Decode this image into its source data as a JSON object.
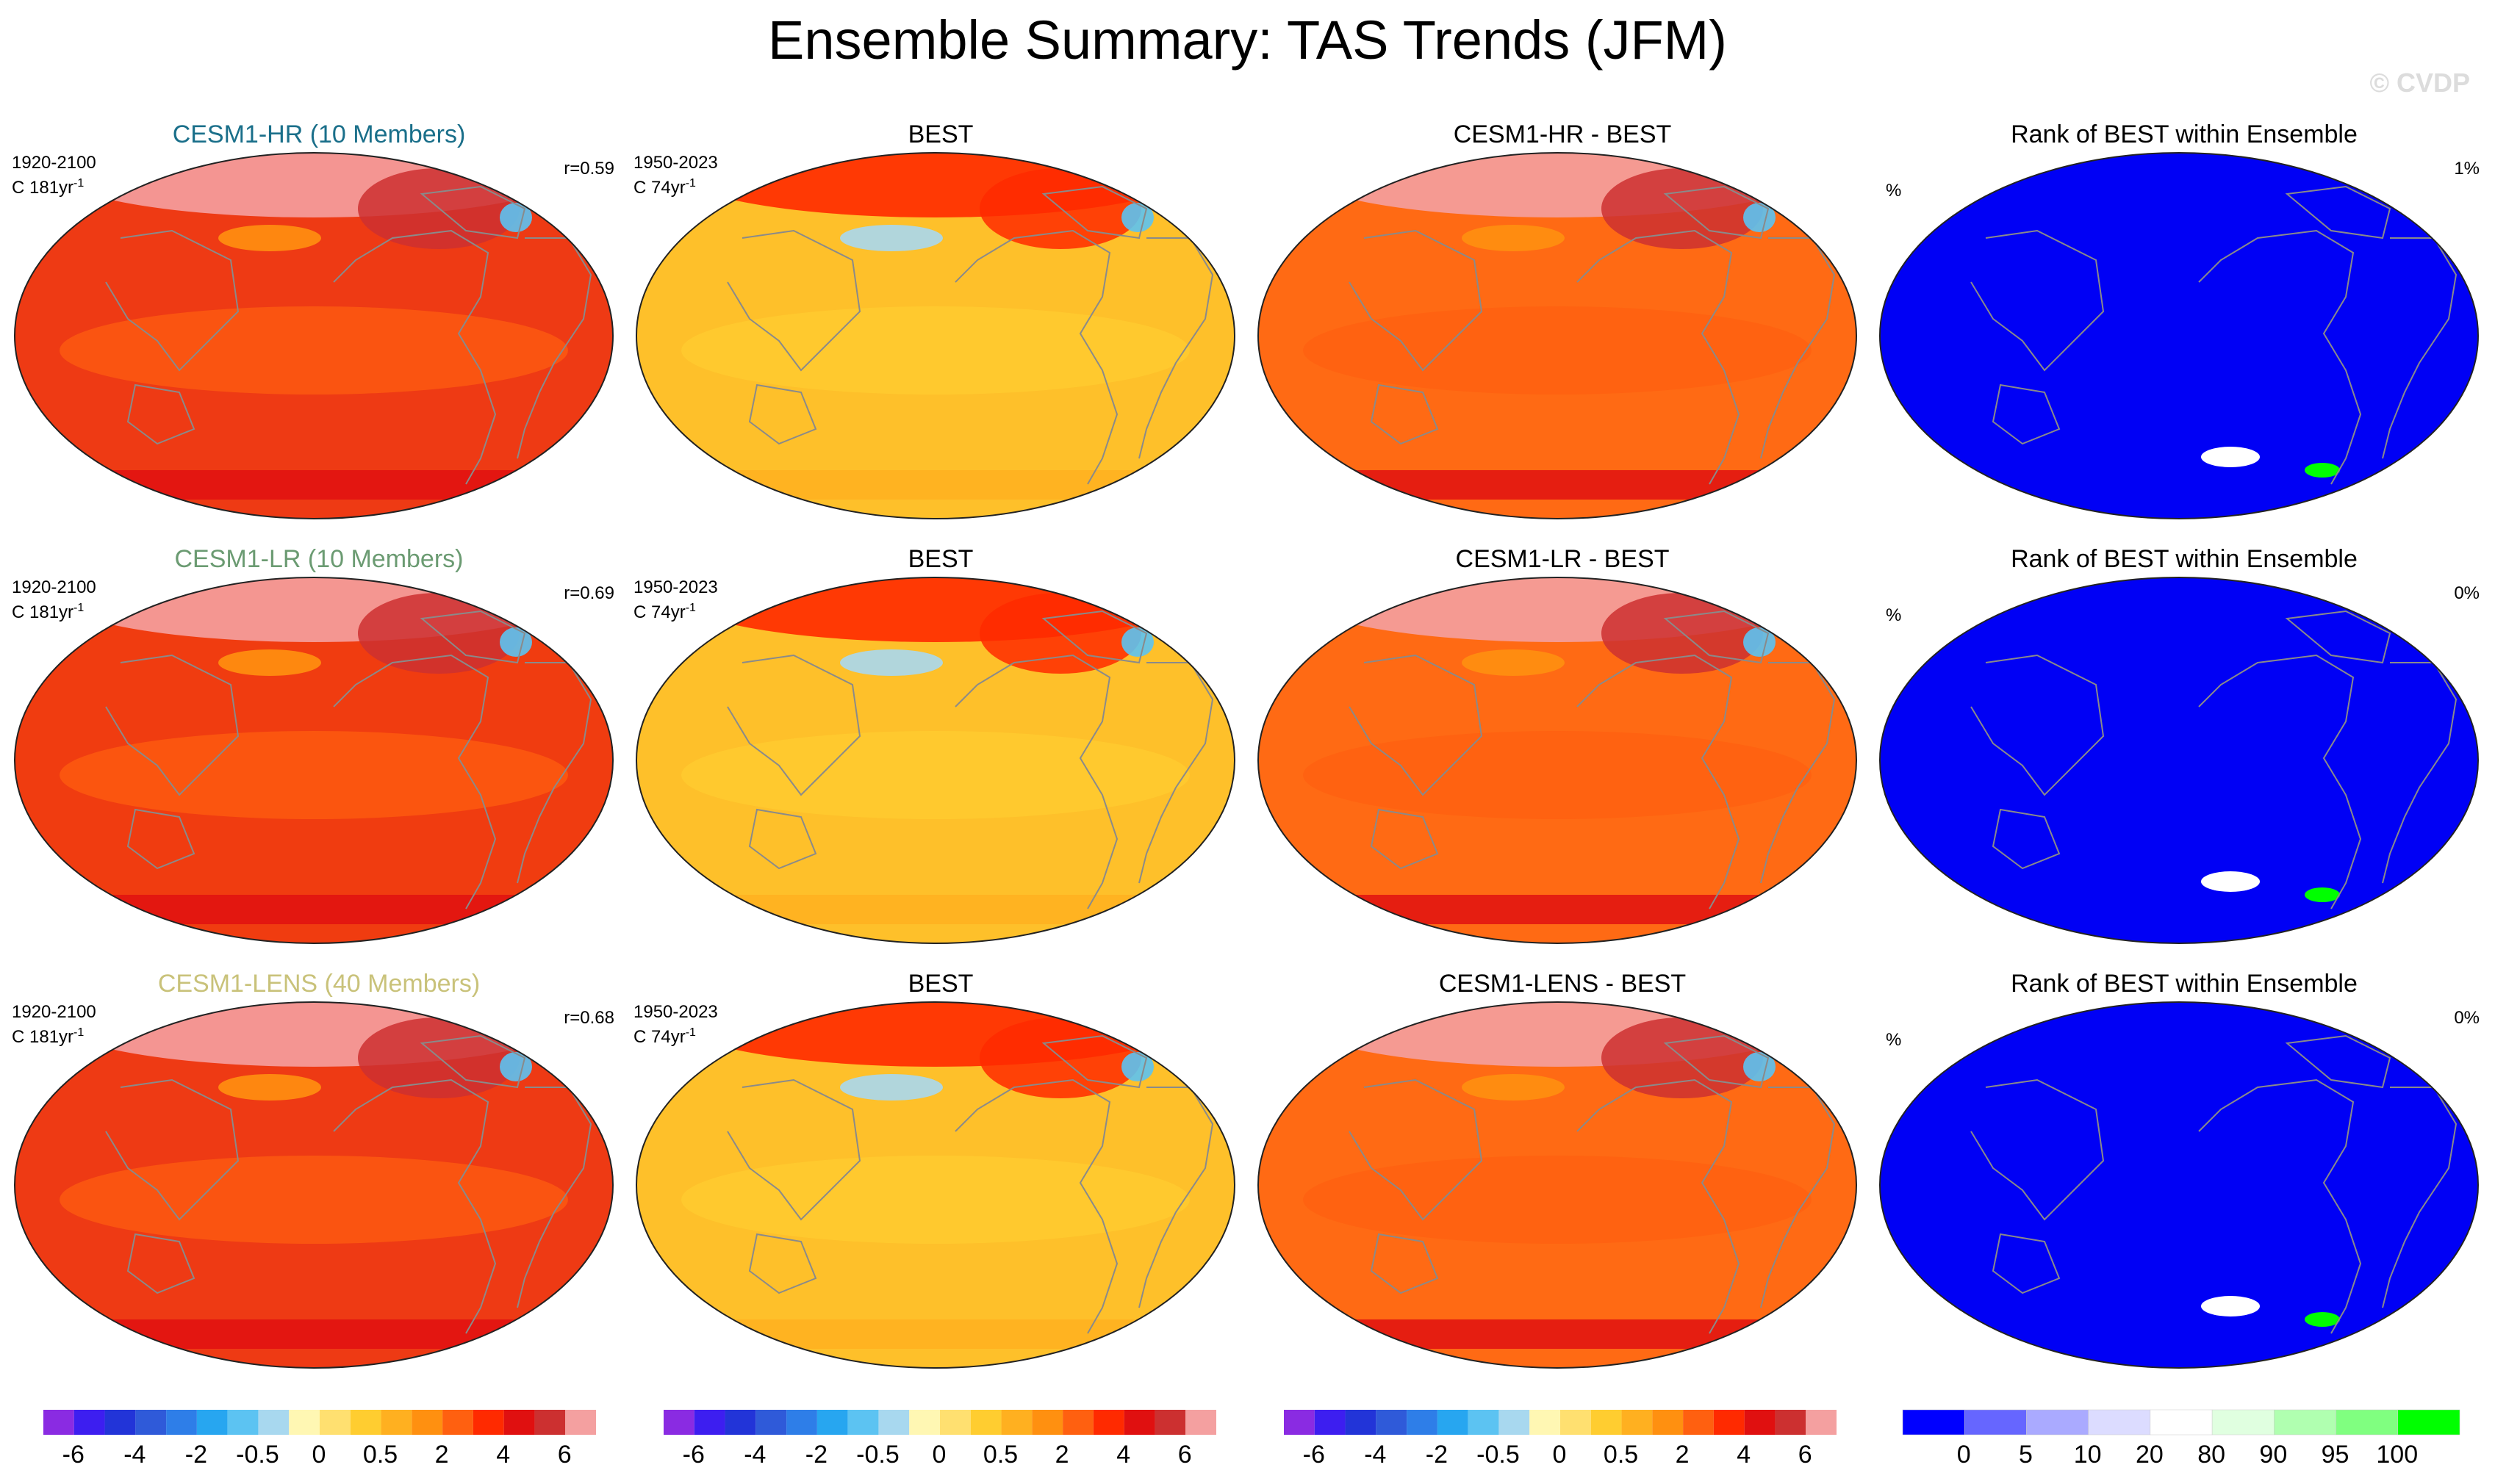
{
  "title": "Ensemble Summary: TAS Trends (JFM)",
  "watermark": "© CVDP",
  "colors": {
    "trend_scale": [
      "#8a2be2",
      "#3d1ef0",
      "#2234d8",
      "#2f5ad9",
      "#2e7ee8",
      "#27a6f0",
      "#5cc3f2",
      "#a8d8ef",
      "#fff7b3",
      "#ffe070",
      "#ffcd30",
      "#ffb020",
      "#ff9010",
      "#ff6010",
      "#ff2a00",
      "#e01010",
      "#cc3030",
      "#f4a0a0"
    ],
    "rank_scale": [
      "#0000ff",
      "#6666ff",
      "#aaaaff",
      "#dcdcff",
      "#ffffff",
      "#e0ffe0",
      "#b0ffb0",
      "#80ff80",
      "#00ff00"
    ],
    "map_models": [
      "#ee3a14",
      "#f03c10",
      "#ee3a14"
    ],
    "map_obs": "#fec02a",
    "map_diff": "#ff6a14",
    "map_rank": "#0000f5",
    "land_outline": "#8a8a8a"
  },
  "rows": [
    {
      "model": {
        "title": "CESM1-HR (10 Members)",
        "title_color": "#1a6f8a",
        "period": "1920-2100",
        "units": "C 181yr",
        "units_sup": "-1",
        "corr": "r=0.59"
      },
      "obs": {
        "title": "BEST",
        "period": "1950-2023",
        "units": "C 74yr",
        "units_sup": "-1"
      },
      "diff": {
        "title": "CESM1-HR - BEST"
      },
      "rank": {
        "title": "Rank of BEST within Ensemble",
        "pct_label": "%",
        "pct_value": "1%"
      }
    },
    {
      "model": {
        "title": "CESM1-LR (10 Members)",
        "title_color": "#6b9b72",
        "period": "1920-2100",
        "units": "C 181yr",
        "units_sup": "-1",
        "corr": "r=0.69"
      },
      "obs": {
        "title": "BEST",
        "period": "1950-2023",
        "units": "C 74yr",
        "units_sup": "-1"
      },
      "diff": {
        "title": "CESM1-LR - BEST"
      },
      "rank": {
        "title": "Rank of BEST within Ensemble",
        "pct_label": "%",
        "pct_value": "0%"
      }
    },
    {
      "model": {
        "title": "CESM1-LENS (40 Members)",
        "title_color": "#c9c27a",
        "period": "1920-2100",
        "units": "C 181yr",
        "units_sup": "-1",
        "corr": "r=0.68"
      },
      "obs": {
        "title": "BEST",
        "period": "1950-2023",
        "units": "C 74yr",
        "units_sup": "-1"
      },
      "diff": {
        "title": "CESM1-LENS - BEST"
      },
      "rank": {
        "title": "Rank of BEST within Ensemble",
        "pct_label": "%",
        "pct_value": "0%"
      }
    }
  ],
  "colorbars": {
    "trend_ticks": [
      "-6",
      "-4",
      "-2",
      "-0.5",
      "0",
      "0.5",
      "2",
      "4",
      "6"
    ],
    "rank_ticks": [
      "0",
      "5",
      "10",
      "20",
      "80",
      "90",
      "95",
      "100"
    ]
  },
  "chart_data": {
    "type": "heatmap",
    "title": "Ensemble Summary: TAS Trends (JFM)",
    "projection": "Robinson (Pacific-centered)",
    "variable": "TAS",
    "season": "JFM",
    "trend_contour_levels": [
      -6,
      -4,
      -2,
      -0.5,
      0,
      0.5,
      2,
      4,
      6
    ],
    "rank_contour_levels": [
      0,
      5,
      10,
      20,
      80,
      90,
      95,
      100
    ],
    "panels": [
      {
        "row": 0,
        "type": "model trend",
        "title": "CESM1-HR (10 Members)",
        "period": "1920-2100",
        "units": "C 181yr-1",
        "pattern_correlation": 0.59
      },
      {
        "row": 0,
        "type": "observed trend",
        "title": "BEST",
        "period": "1950-2023",
        "units": "C 74yr-1"
      },
      {
        "row": 0,
        "type": "difference",
        "title": "CESM1-HR - BEST"
      },
      {
        "row": 0,
        "type": "rank",
        "title": "Rank of BEST within Ensemble",
        "percent": 1
      },
      {
        "row": 1,
        "type": "model trend",
        "title": "CESM1-LR (10 Members)",
        "period": "1920-2100",
        "units": "C 181yr-1",
        "pattern_correlation": 0.69
      },
      {
        "row": 1,
        "type": "observed trend",
        "title": "BEST",
        "period": "1950-2023",
        "units": "C 74yr-1"
      },
      {
        "row": 1,
        "type": "difference",
        "title": "CESM1-LR - BEST"
      },
      {
        "row": 1,
        "type": "rank",
        "title": "Rank of BEST within Ensemble",
        "percent": 0
      },
      {
        "row": 2,
        "type": "model trend",
        "title": "CESM1-LENS (40 Members)",
        "period": "1920-2100",
        "units": "C 181yr-1",
        "pattern_correlation": 0.68
      },
      {
        "row": 2,
        "type": "observed trend",
        "title": "BEST",
        "period": "1950-2023",
        "units": "C 74yr-1"
      },
      {
        "row": 2,
        "type": "difference",
        "title": "CESM1-LENS - BEST"
      },
      {
        "row": 2,
        "type": "rank",
        "title": "Rank of BEST within Ensemble",
        "percent": 0
      }
    ]
  }
}
